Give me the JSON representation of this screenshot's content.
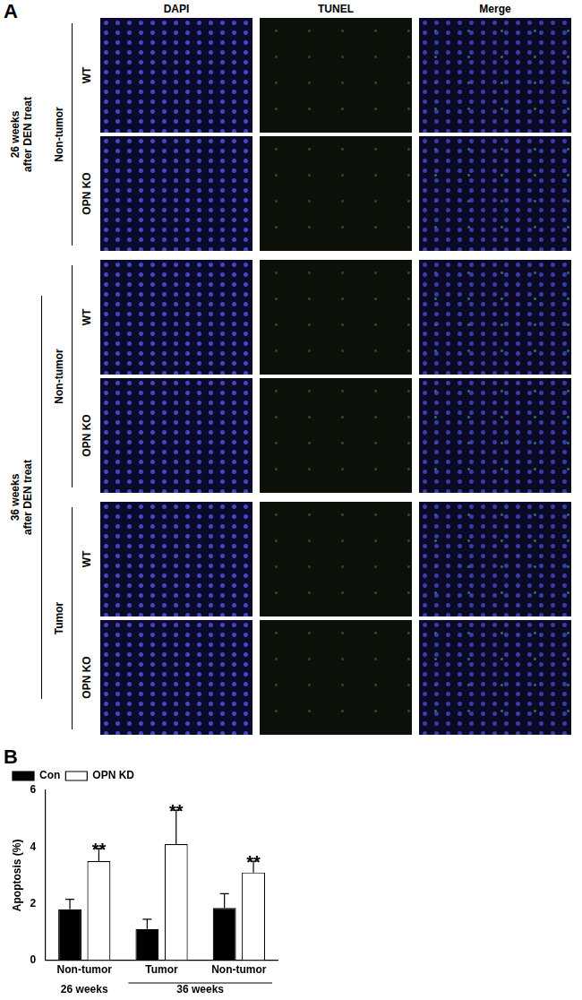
{
  "panel_a": {
    "label": "A",
    "columns": [
      "DAPI",
      "TUNEL",
      "Merge"
    ],
    "groups": [
      {
        "label": [
          "26 weeks",
          "after DEN treat"
        ],
        "sections": [
          {
            "label": "Non-tumor",
            "rows": [
              "WT",
              "OPN KO"
            ]
          }
        ]
      },
      {
        "label": [
          "36 weeks",
          "after DEN treat"
        ],
        "sections": [
          {
            "label": "Non-tumor",
            "rows": [
              "WT",
              "OPN KO"
            ]
          },
          {
            "label": "Tumor",
            "rows": [
              "WT",
              "OPN KO"
            ]
          }
        ]
      }
    ]
  },
  "panel_b_label": "B",
  "chart_data": {
    "type": "bar",
    "categories": [
      "Non-tumor",
      "Tumor",
      "Non-tumor"
    ],
    "category_groups": [
      {
        "label": "26 weeks",
        "start": 0,
        "end": 0
      },
      {
        "label": "36 weeks",
        "start": 1,
        "end": 2
      }
    ],
    "y_label": "Apoptosis (%)",
    "series": [
      {
        "name": "Con",
        "color": "#000000",
        "values": [
          1.8,
          1.1,
          1.85
        ],
        "errors": [
          0.35,
          0.35,
          0.5
        ]
      },
      {
        "name": "OPN KD",
        "color": "#ffffff",
        "values": [
          3.5,
          4.1,
          3.1
        ],
        "errors": [
          0.45,
          1.2,
          0.4
        ]
      }
    ],
    "annotations": [
      {
        "text": "**",
        "series": 1,
        "category": 0
      },
      {
        "text": "**",
        "series": 1,
        "category": 1
      },
      {
        "text": "**",
        "series": 1,
        "category": 2
      }
    ],
    "ylim": [
      0,
      6
    ],
    "yticks": [
      0,
      2,
      4,
      6
    ],
    "grid": false,
    "legend": "top-left"
  }
}
